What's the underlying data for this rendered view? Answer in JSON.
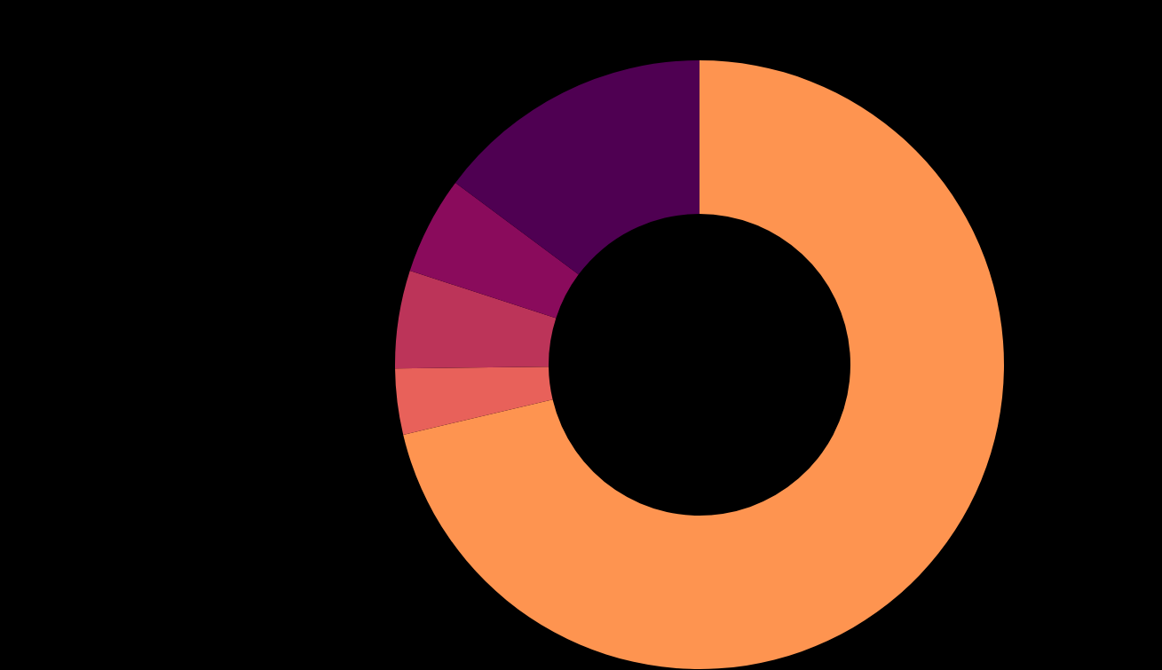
{
  "chart_data": {
    "type": "donut",
    "categories": [
      null,
      null,
      null,
      null,
      null
    ],
    "values": [
      71.3,
      3.5,
      5.2,
      5.2,
      14.8
    ],
    "colors": [
      "#fe9450",
      "#e8615a",
      "#bc3459",
      "#8a0b5c",
      "#4f0052"
    ]
  }
}
